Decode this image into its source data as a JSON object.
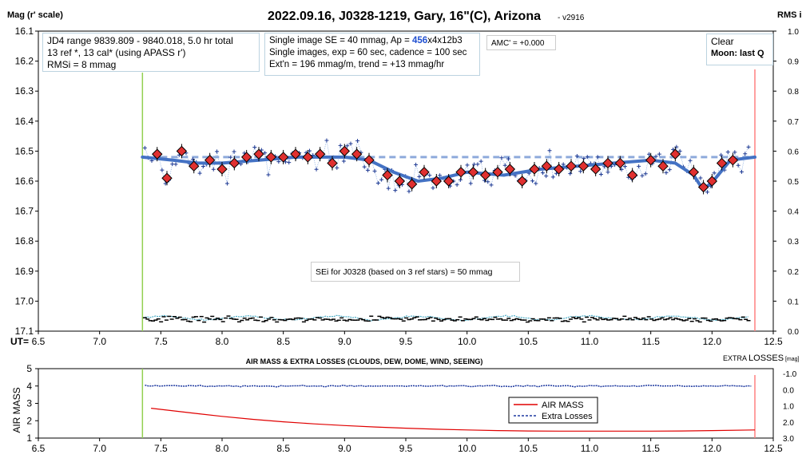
{
  "header": {
    "title": "2022.09.16, J0328-1219, Gary, 16\"(C), Arizona",
    "version": "- v2916",
    "y_left_label": "Mag (r' scale)",
    "y_right_label": "RMS i",
    "x_label": "UT="
  },
  "info": {
    "box1": [
      "JD4 range 9839.809 - 9840.018, 5.0 hr total",
      "13 ref *, 13 cal*  (using APASS r')",
      "RMSi = 8 mmag"
    ],
    "box2_prefix": "Single image SE = 40 mmag, Ap = ",
    "box2_ap": "456",
    "box2_suffix": "x4x12b3",
    "box2_line2": "Single images, exp = 60 sec, cadence = 100 sec",
    "box2_line3": "Ext'n = 196 mmag/m, trend = +13 mmag/hr",
    "amc": "AMC' = +0.000",
    "weather": "Clear",
    "moon": "Moon: last Q",
    "sei": "SEi for J0328 (based on 3 ref stars) = 50 mmag"
  },
  "lower": {
    "title": "AIR MASS & EXTRA LOSSES (CLOUDS, DEW, DOME, WIND, SEEING)",
    "y_left_label": "AIR MASS",
    "y_right_label_a": "EXTRA ",
    "y_right_label_b": "LOSSES",
    "y_right_label_c": " [mag]",
    "legend": [
      "AIR MASS",
      "Extra Losses"
    ]
  },
  "colors": {
    "fit": "#4472c4",
    "ref_line": "#8eaadb",
    "marker": "#e03030",
    "points": "#1f3a93",
    "rms_cyan": "#4bacc6",
    "airmass": "#e00000",
    "losses": "#1f3aa0",
    "start": "#92d050",
    "end": "#ff8080"
  },
  "chart_data": {
    "type": "scatter",
    "xlim": [
      6.5,
      12.5
    ],
    "x_ticks": [
      "6.5",
      "7.0",
      "7.5",
      "8.0",
      "8.5",
      "9.0",
      "9.5",
      "10.0",
      "10.5",
      "11.0",
      "11.5",
      "12.0",
      "12.5"
    ],
    "ylim_mag": [
      16.1,
      17.1
    ],
    "y_ticks_mag": [
      "16.1",
      "16.2",
      "16.3",
      "16.4",
      "16.5",
      "16.6",
      "16.7",
      "16.8",
      "16.9",
      "17.0",
      "17.1"
    ],
    "ylim_rms": [
      0.0,
      1.0
    ],
    "y_ticks_rms": [
      "1.0",
      "0.9",
      "0.8",
      "0.7",
      "0.6",
      "0.5",
      "0.4",
      "0.3",
      "0.2",
      "0.1",
      "0.0"
    ],
    "start_ut": 7.35,
    "end_ut": 12.35,
    "reference_mag": 16.52,
    "binned": {
      "x": [
        7.47,
        7.55,
        7.67,
        7.77,
        7.9,
        8.0,
        8.1,
        8.2,
        8.3,
        8.4,
        8.5,
        8.6,
        8.7,
        8.8,
        8.9,
        9.0,
        9.1,
        9.2,
        9.35,
        9.45,
        9.55,
        9.65,
        9.75,
        9.85,
        9.95,
        10.05,
        10.15,
        10.25,
        10.35,
        10.45,
        10.55,
        10.65,
        10.75,
        10.85,
        10.95,
        11.05,
        11.15,
        11.25,
        11.35,
        11.5,
        11.6,
        11.7,
        11.85,
        11.93,
        12.0,
        12.08,
        12.17
      ],
      "y": [
        16.51,
        16.59,
        16.5,
        16.55,
        16.53,
        16.56,
        16.54,
        16.52,
        16.51,
        16.52,
        16.52,
        16.51,
        16.52,
        16.51,
        16.54,
        16.5,
        16.51,
        16.53,
        16.58,
        16.6,
        16.61,
        16.57,
        16.6,
        16.6,
        16.57,
        16.57,
        16.58,
        16.57,
        16.56,
        16.6,
        16.56,
        16.55,
        16.56,
        16.55,
        16.55,
        16.56,
        16.54,
        16.54,
        16.58,
        16.53,
        16.55,
        16.51,
        16.57,
        16.62,
        16.6,
        16.54,
        16.53
      ]
    },
    "fit": {
      "x": [
        7.35,
        7.6,
        7.8,
        8.0,
        8.3,
        8.6,
        9.0,
        9.2,
        9.4,
        9.6,
        9.8,
        10.0,
        10.3,
        10.6,
        10.9,
        11.2,
        11.5,
        11.7,
        11.85,
        11.93,
        12.03,
        12.15,
        12.35
      ],
      "y": [
        16.52,
        16.53,
        16.54,
        16.54,
        16.53,
        16.52,
        16.52,
        16.53,
        16.57,
        16.6,
        16.59,
        16.57,
        16.58,
        16.56,
        16.55,
        16.54,
        16.53,
        16.54,
        16.58,
        16.63,
        16.59,
        16.53,
        16.52
      ]
    },
    "airmass": {
      "x": [
        7.42,
        7.75,
        8.0,
        8.25,
        8.5,
        8.75,
        9.0,
        9.25,
        9.5,
        9.75,
        10.0,
        10.25,
        10.5,
        10.75,
        11.0,
        11.25,
        11.5,
        11.75,
        12.0,
        12.35
      ],
      "y": [
        2.72,
        2.45,
        2.25,
        2.08,
        1.94,
        1.82,
        1.72,
        1.64,
        1.57,
        1.51,
        1.47,
        1.43,
        1.41,
        1.4,
        1.4,
        1.4,
        1.4,
        1.41,
        1.43,
        1.47
      ]
    },
    "extra_losses": {
      "level": 0.0,
      "ylim": [
        -1.0,
        3.0
      ]
    },
    "lower_ylim": [
      1,
      5
    ],
    "lower_y_ticks": [
      "5",
      "4",
      "3",
      "2",
      "1"
    ],
    "lower_y_ticks_right": [
      "-1.0",
      "0.0",
      "1.0",
      "2.0",
      "3.0"
    ]
  }
}
